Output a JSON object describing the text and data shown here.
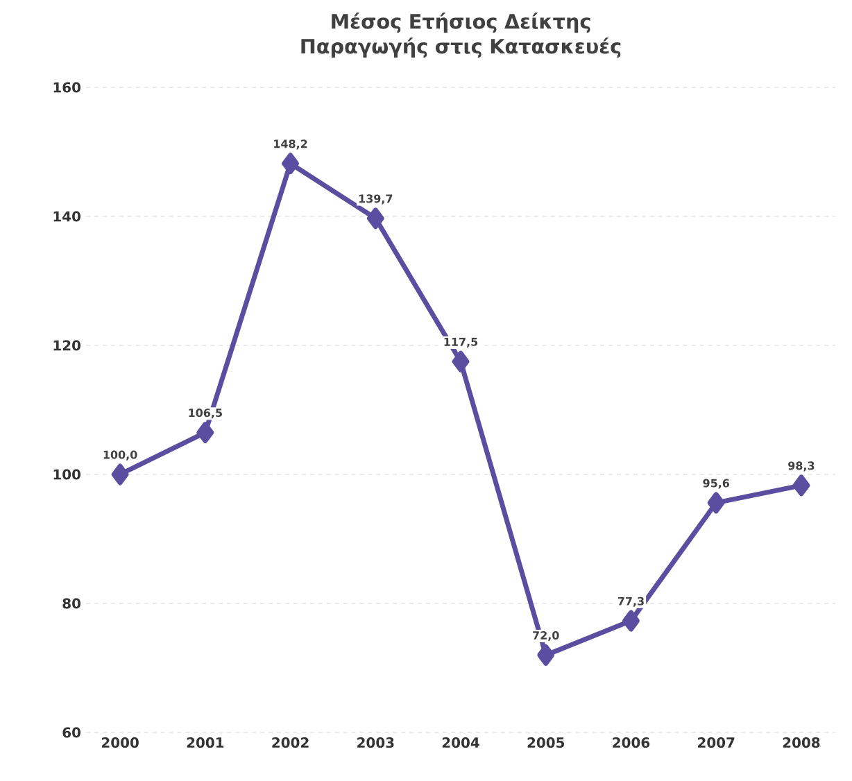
{
  "chart_data": {
    "type": "line",
    "title": "Μέσος Ετήσιος Δείκτης Παραγωγής στις Κατασκευές",
    "categories": [
      "2000",
      "2001",
      "2002",
      "2003",
      "2004",
      "2005",
      "2006",
      "2007",
      "2008"
    ],
    "values": [
      100.0,
      106.5,
      148.2,
      139.7,
      117.5,
      72.0,
      77.3,
      95.6,
      98.3
    ],
    "value_labels": [
      "100,0",
      "106,5",
      "148,2",
      "139,7",
      "117,5",
      "72,0",
      "77,3",
      "95,6",
      "98,3"
    ],
    "color": "#5b4ea0",
    "marker": "diamond",
    "line_style": "solid",
    "ylim": [
      60,
      160
    ],
    "yticks": [
      60,
      80,
      100,
      120,
      140,
      160
    ],
    "grid": "y"
  }
}
